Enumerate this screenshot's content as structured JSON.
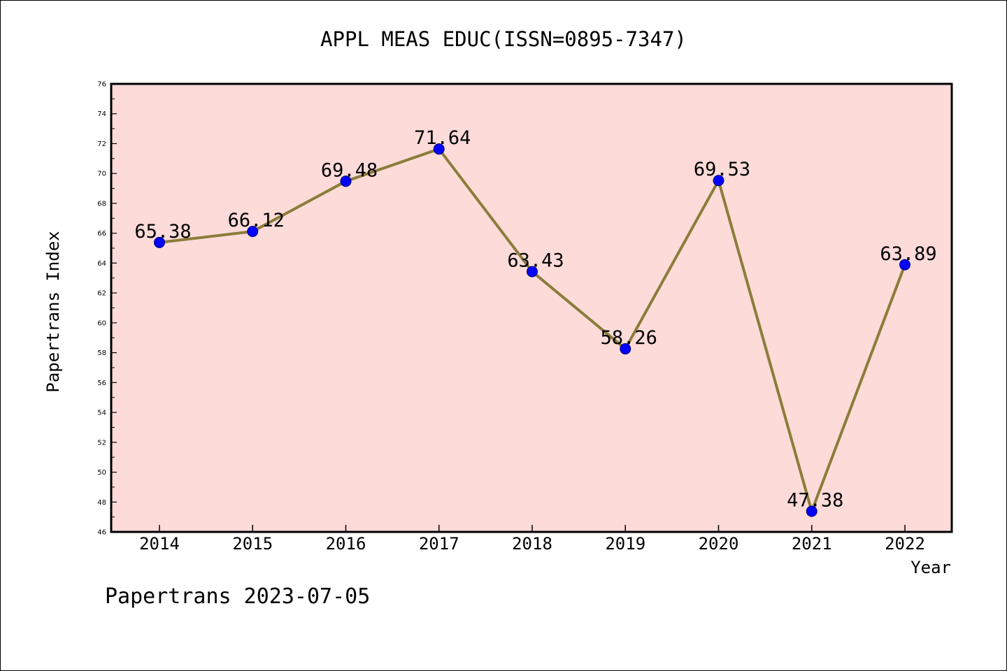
{
  "chart_data": {
    "type": "line",
    "title": "APPL MEAS EDUC(ISSN=0895-7347)",
    "xlabel": "Year",
    "ylabel": "Papertrans Index",
    "x": [
      "2014",
      "2015",
      "2016",
      "2017",
      "2018",
      "2019",
      "2020",
      "2021",
      "2022"
    ],
    "series": [
      {
        "values": [
          65.38,
          66.12,
          69.48,
          71.64,
          63.43,
          58.26,
          69.53,
          47.38,
          63.89
        ],
        "labels": [
          "65.38",
          "66.12",
          "69.48",
          "71.64",
          "63.43",
          "58.26",
          "69.53",
          "47.38",
          "63.89"
        ]
      }
    ],
    "ylim": [
      46,
      76
    ],
    "ytick_step": 2,
    "grid": false,
    "legend": "none",
    "colors": {
      "plot_background": "#fddbd9",
      "line": "#8b7d3a",
      "marker": "#0000ff",
      "axes": "#000000"
    }
  },
  "footer": "Papertrans 2023-07-05"
}
